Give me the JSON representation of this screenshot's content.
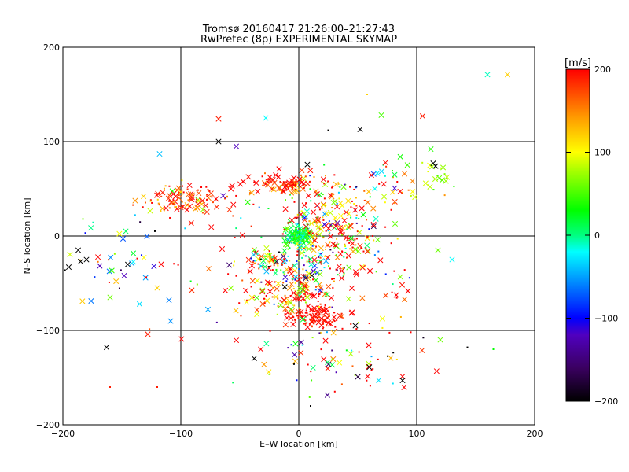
{
  "chart_data": [
    {
      "type": "scatter",
      "title": "Tromsø 20160417 21:26:00–21:27:43",
      "subtitle": "RwPretec (8p) EXPERIMENTAL SKYMAP",
      "xlabel": "E–W location [km]",
      "ylabel": "N–S location [km]",
      "xlim": [
        -200,
        200
      ],
      "ylim": [
        -200,
        200
      ],
      "xticks": [
        -200,
        -100,
        0,
        100,
        200
      ],
      "yticks": [
        -200,
        -100,
        0,
        100,
        200
      ],
      "xtick_labels": [
        "−200",
        "−100",
        "0",
        "100",
        "200"
      ],
      "ytick_labels": [
        "−200",
        "−100",
        "0",
        "100",
        "200"
      ],
      "grid": true,
      "marker_types": [
        "cross",
        "dot"
      ],
      "clusters": [
        {
          "x": 0,
          "y": 0,
          "sx": 6,
          "sy": 6,
          "n": 140,
          "v": 20,
          "sv": 30,
          "cross": 0.4
        },
        {
          "x": 20,
          "y": 10,
          "sx": 18,
          "sy": 22,
          "n": 200,
          "v": 120,
          "sv": 120,
          "cross": 0.45
        },
        {
          "x": -10,
          "y": 55,
          "sx": 20,
          "sy": 6,
          "n": 90,
          "v": 190,
          "sv": 40,
          "cross": 0.5
        },
        {
          "x": -95,
          "y": 38,
          "sx": 22,
          "sy": 8,
          "n": 110,
          "v": 185,
          "sv": 50,
          "cross": 0.5
        },
        {
          "x": -25,
          "y": -25,
          "sx": 12,
          "sy": 6,
          "n": 70,
          "v": 60,
          "sv": 160,
          "cross": 0.5
        },
        {
          "x": 15,
          "y": -85,
          "sx": 12,
          "sy": 6,
          "n": 120,
          "v": 195,
          "sv": 15,
          "cross": 0.35
        },
        {
          "x": -5,
          "y": -60,
          "sx": 20,
          "sy": 12,
          "n": 110,
          "v": 170,
          "sv": 70,
          "cross": 0.4
        },
        {
          "x": 10,
          "y": -40,
          "sx": 20,
          "sy": 15,
          "n": 90,
          "v": 80,
          "sv": 150,
          "cross": 0.4
        },
        {
          "x": 55,
          "y": -20,
          "sx": 20,
          "sy": 30,
          "n": 70,
          "v": 150,
          "sv": 110,
          "cross": 0.45
        },
        {
          "x": 35,
          "y": -130,
          "sx": 35,
          "sy": 18,
          "n": 80,
          "v": 100,
          "sv": 200,
          "cross": 0.4
        },
        {
          "x": 75,
          "y": 50,
          "sx": 15,
          "sy": 15,
          "n": 40,
          "v": 120,
          "sv": 100,
          "cross": 0.4
        },
        {
          "x": 120,
          "y": 62,
          "sx": 6,
          "sy": 6,
          "n": 18,
          "v": 70,
          "sv": 20,
          "cross": 0.7
        },
        {
          "x": -160,
          "y": -30,
          "sx": 25,
          "sy": 20,
          "n": 30,
          "v": -60,
          "sv": 120,
          "cross": 0.6
        },
        {
          "x": -60,
          "y": -20,
          "sx": 50,
          "sy": 50,
          "n": 60,
          "v": 100,
          "sv": 200,
          "cross": 0.4
        }
      ],
      "isolated_points": [
        {
          "x": 160,
          "y": 171,
          "v": -10,
          "m": "cross"
        },
        {
          "x": 177,
          "y": 171,
          "v": 120,
          "m": "cross"
        },
        {
          "x": 105,
          "y": 127,
          "v": 190,
          "m": "cross"
        },
        {
          "x": 70,
          "y": 128,
          "v": 50,
          "m": "cross"
        },
        {
          "x": -28,
          "y": 125,
          "v": -20,
          "m": "cross"
        },
        {
          "x": -68,
          "y": 124,
          "v": 190,
          "m": "cross"
        },
        {
          "x": 52,
          "y": 113,
          "v": -200,
          "m": "cross"
        },
        {
          "x": -68,
          "y": 100,
          "v": -200,
          "m": "cross"
        },
        {
          "x": -53,
          "y": 95,
          "v": -120,
          "m": "cross"
        },
        {
          "x": -118,
          "y": 87,
          "v": -40,
          "m": "cross"
        },
        {
          "x": 114,
          "y": 77,
          "v": -200,
          "m": "cross"
        },
        {
          "x": 116,
          "y": 74,
          "v": -200,
          "m": "cross"
        },
        {
          "x": -163,
          "y": -118,
          "v": -200,
          "m": "cross"
        },
        {
          "x": -195,
          "y": -33,
          "v": -200,
          "m": "cross"
        },
        {
          "x": -187,
          "y": -15,
          "v": -200,
          "m": "cross"
        },
        {
          "x": -185,
          "y": -27,
          "v": -200,
          "m": "cross"
        },
        {
          "x": -180,
          "y": -25,
          "v": -200,
          "m": "cross"
        },
        {
          "x": 88,
          "y": -153,
          "v": -200,
          "m": "cross"
        },
        {
          "x": 48,
          "y": -95,
          "v": -200,
          "m": "cross"
        },
        {
          "x": 120,
          "y": -110,
          "v": 60,
          "m": "cross"
        },
        {
          "x": -128,
          "y": -104,
          "v": 190,
          "m": "cross"
        },
        {
          "x": 143,
          "y": -118,
          "v": -200,
          "m": "dot"
        },
        {
          "x": 165,
          "y": -120,
          "v": 30,
          "m": "dot"
        },
        {
          "x": 130,
          "y": -25,
          "v": -20,
          "m": "cross"
        },
        {
          "x": 118,
          "y": -15,
          "v": 60,
          "m": "cross"
        },
        {
          "x": 112,
          "y": 92,
          "v": 40,
          "m": "cross"
        },
        {
          "x": -160,
          "y": -65,
          "v": 60,
          "m": "cross"
        },
        {
          "x": -110,
          "y": -68,
          "v": -60,
          "m": "cross"
        },
        {
          "x": -135,
          "y": -72,
          "v": -30,
          "m": "cross"
        },
        {
          "x": -148,
          "y": -42,
          "v": -120,
          "m": "cross"
        },
        {
          "x": -120,
          "y": -55,
          "v": 120,
          "m": "cross"
        },
        {
          "x": -160,
          "y": -160,
          "v": 190,
          "m": "dot"
        },
        {
          "x": -120,
          "y": -160,
          "v": 190,
          "m": "dot"
        },
        {
          "x": -183,
          "y": 18,
          "v": 60,
          "m": "dot"
        },
        {
          "x": 10,
          "y": -180,
          "v": -200,
          "m": "dot"
        },
        {
          "x": 58,
          "y": 150,
          "v": 120,
          "m": "dot"
        },
        {
          "x": 25,
          "y": 112,
          "v": -200,
          "m": "dot"
        }
      ],
      "colorbar": {
        "label": "[m/s]",
        "range": [
          -200,
          200
        ],
        "ticks": [
          -200,
          -100,
          0,
          100,
          200
        ],
        "tick_labels": [
          "−200",
          "−100",
          "0",
          "100",
          "200"
        ],
        "stops": [
          {
            "v": -200,
            "color": "#000000"
          },
          {
            "v": -160,
            "color": "#3a0060"
          },
          {
            "v": -120,
            "color": "#5000c0"
          },
          {
            "v": -100,
            "color": "#0000ff"
          },
          {
            "v": -50,
            "color": "#00a0ff"
          },
          {
            "v": -20,
            "color": "#00ffff"
          },
          {
            "v": 0,
            "color": "#00ff80"
          },
          {
            "v": 30,
            "color": "#00ff00"
          },
          {
            "v": 80,
            "color": "#b0ff00"
          },
          {
            "v": 100,
            "color": "#ffff00"
          },
          {
            "v": 140,
            "color": "#ffa000"
          },
          {
            "v": 170,
            "color": "#ff5000"
          },
          {
            "v": 200,
            "color": "#ff0000"
          }
        ]
      }
    }
  ]
}
